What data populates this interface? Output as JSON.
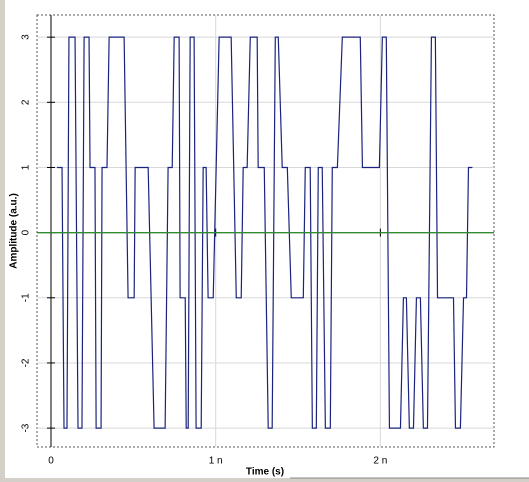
{
  "chart_data": {
    "type": "line",
    "xlabel": "Time (s)",
    "ylabel": "Amplitude (a.u.)",
    "xlim": [
      -8.5e-11,
      2.69e-09
    ],
    "ylim": [
      -3.29,
      3.34
    ],
    "xticks": [
      0,
      {
        "value": 1e-09,
        "label": "1 n"
      },
      {
        "value": 2e-09,
        "label": "2 n"
      }
    ],
    "yticks": [
      3,
      2,
      1,
      0,
      -1,
      -2,
      -3
    ],
    "grid": true,
    "series": [
      {
        "color": "#1a237e",
        "x": [
          3.6e-11,
          6.7e-11,
          7.9e-11,
          9.7e-11,
          1.09e-10,
          1.46e-10,
          1.64e-10,
          1.88e-10,
          2.01e-10,
          2.31e-10,
          2.37e-10,
          2.67e-10,
          2.74e-10,
          3.04e-10,
          3.1e-10,
          3.4e-10,
          3.53e-10,
          4.44e-10,
          4.68e-10,
          5.05e-10,
          5.11e-10,
          5.9e-10,
          6.26e-10,
          6.93e-10,
          7.11e-10,
          7.36e-10,
          7.48e-10,
          7.78e-10,
          7.84e-10,
          8.15e-10,
          8.21e-10,
          8.33e-10,
          8.45e-10,
          8.69e-10,
          8.81e-10,
          9.12e-10,
          9.24e-10,
          9.42e-10,
          9.54e-10,
          9.85e-10,
          1.021e-09,
          1.094e-09,
          1.125e-09,
          1.155e-09,
          1.167e-09,
          1.191e-09,
          1.21e-09,
          1.252e-09,
          1.258e-09,
          1.295e-09,
          1.319e-09,
          1.343e-09,
          1.362e-09,
          1.38e-09,
          1.404e-09,
          1.435e-09,
          1.459e-09,
          1.532e-09,
          1.544e-09,
          1.574e-09,
          1.587e-09,
          1.611e-09,
          1.623e-09,
          1.647e-09,
          1.666e-09,
          1.696e-09,
          1.708e-09,
          1.739e-09,
          1.769e-09,
          1.878e-09,
          1.891e-09,
          1.994e-09,
          2.012e-09,
          2.036e-09,
          2.055e-09,
          2.122e-09,
          2.14e-09,
          2.158e-09,
          2.176e-09,
          2.201e-09,
          2.219e-09,
          2.243e-09,
          2.261e-09,
          2.286e-09,
          2.31e-09,
          2.334e-09,
          2.347e-09,
          2.371e-09,
          2.389e-09,
          2.444e-09,
          2.456e-09,
          2.486e-09,
          2.505e-09,
          2.523e-09,
          2.535e-09,
          2.559e-09
        ],
        "values": [
          1,
          1,
          -3,
          -3,
          3,
          3,
          -3,
          -3,
          3,
          3,
          1,
          1,
          -3,
          -3,
          1,
          1,
          3,
          3,
          -1,
          -1,
          1,
          1,
          -3,
          -3,
          1,
          1,
          3,
          3,
          -1,
          -1,
          -3,
          -3,
          3,
          3,
          -3,
          -3,
          1,
          1,
          -1,
          -1,
          3,
          3,
          -1,
          -1,
          1,
          1,
          3,
          3,
          1,
          1,
          -3,
          -3,
          3,
          3,
          1,
          1,
          -1,
          -1,
          1,
          1,
          -3,
          -3,
          1,
          1,
          -3,
          -3,
          1,
          1,
          3,
          3,
          1,
          1,
          3,
          3,
          -3,
          -3,
          -1,
          -1,
          -3,
          -3,
          -1,
          -1,
          -3,
          -3,
          3,
          3,
          -1,
          -1,
          -1,
          -1,
          -3,
          -3,
          -1,
          -1,
          1,
          1
        ]
      },
      {
        "color": "#2e8b2e",
        "x": [
          -8.5e-11,
          2.69e-09
        ],
        "values": [
          0,
          0
        ]
      }
    ]
  }
}
